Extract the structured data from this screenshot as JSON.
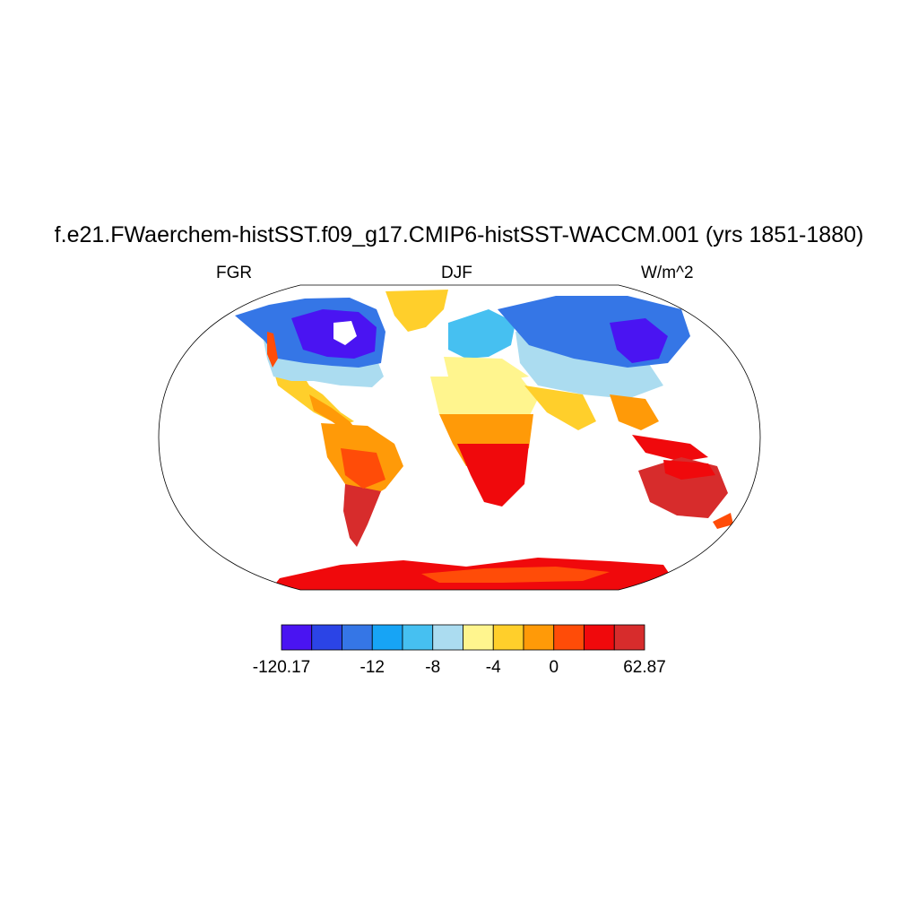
{
  "title": "f.e21.FWaerchem-histSST.f09_g17.CMIP6-histSST-WACCM.001 (yrs 1851-1880)",
  "left_label": "FGR",
  "center_label": "DJF",
  "right_label": "W/m^2",
  "colorbar": {
    "colors": [
      "#4a14f2",
      "#2b44e6",
      "#3576e6",
      "#17a4f5",
      "#46c0f1",
      "#abdcf0",
      "#fff58e",
      "#ffcf2b",
      "#ff9a08",
      "#ff4c08",
      "#f0090c",
      "#d72c2c"
    ],
    "labels": [
      "-120.17",
      "-12",
      "-8",
      "-4",
      "0",
      "62.87"
    ],
    "label_boundaries": [
      0,
      3,
      5,
      7,
      9,
      12
    ]
  },
  "chart_data": {
    "type": "heatmap",
    "projection": "robinson",
    "field": "FGR",
    "season": "DJF",
    "units": "W/m^2",
    "min": -120.17,
    "max": 62.87,
    "contour_levels": [
      -120.17,
      -12,
      -8,
      -4,
      0,
      62.87
    ]
  }
}
